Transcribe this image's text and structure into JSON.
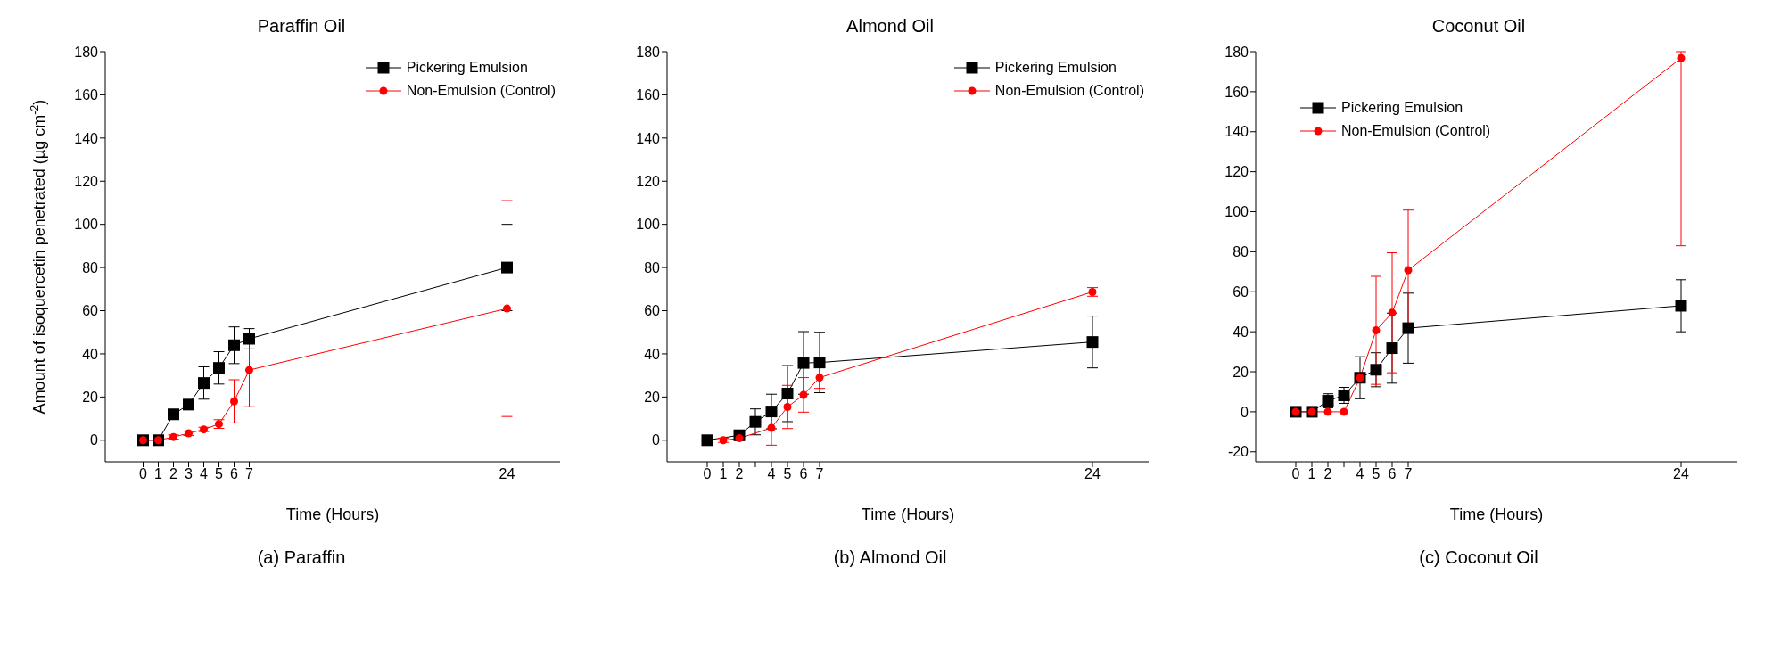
{
  "chart_data": [
    {
      "type": "line",
      "title": "Paraffin Oil",
      "xlabel": "Time (Hours)",
      "ylabel": "Amount of isoquercetin penetrated (µg cm$^{-2}$)",
      "xlim": [
        -2.5,
        27.5
      ],
      "xticks": [
        0,
        1,
        2,
        3,
        4,
        5,
        6,
        7,
        24
      ],
      "ylim": [
        -10,
        180
      ],
      "yticks": [
        0,
        20,
        40,
        60,
        80,
        100,
        120,
        140,
        160,
        180
      ],
      "legend": "top right",
      "annotations": [
        "(a)  Paraffin"
      ],
      "series": [
        {
          "name": "Pickering Emulsion",
          "color": "#000000",
          "marker": "square",
          "x": [
            0,
            1,
            2,
            3,
            4,
            5,
            6,
            7,
            24
          ],
          "values": [
            0,
            0,
            12,
            16.5,
            26.5,
            33.5,
            44,
            47,
            80
          ],
          "errors": [
            null,
            null,
            2,
            1,
            7.5,
            7.5,
            8.5,
            4.7,
            20
          ]
        },
        {
          "name": "Non-Emulsion (Control)",
          "color": "#ff0000",
          "marker": "circle",
          "x": [
            0,
            1,
            2,
            3,
            4,
            5,
            6,
            7,
            24
          ],
          "values": [
            0,
            0,
            1.5,
            3.2,
            5,
            7.5,
            18,
            32.5,
            61
          ],
          "errors": [
            null,
            null,
            1,
            1,
            1,
            2,
            10,
            17,
            50
          ]
        }
      ]
    },
    {
      "type": "line",
      "title": "Almond Oil",
      "xlabel": "Time (Hours)",
      "xlim": [
        -2.5,
        27.5
      ],
      "xticks": [
        0,
        1,
        2,
        {
          "value": 3,
          "label": null
        },
        4,
        5,
        6,
        7,
        24
      ],
      "ylim": [
        -10,
        180
      ],
      "yticks": [
        0,
        20,
        40,
        60,
        80,
        100,
        120,
        140,
        160,
        180
      ],
      "legend": "top right",
      "annotations": [
        "(b) Almond Oil"
      ],
      "series": [
        {
          "name": "Pickering Emulsion",
          "color": "#000000",
          "marker": "square",
          "x": [
            0,
            2,
            3,
            4,
            5,
            6,
            7,
            24
          ],
          "values": [
            0,
            2.3,
            8.5,
            13.3,
            21.6,
            35.8,
            36,
            45.5
          ],
          "errors": [
            null,
            1,
            6,
            8,
            13,
            14.5,
            14,
            12
          ]
        },
        {
          "name": "Non-Emulsion (Control)",
          "color": "#ff0000",
          "marker": "circle",
          "x": [
            1,
            2,
            4,
            5,
            6,
            7,
            24
          ],
          "values": [
            0,
            0.9,
            5.7,
            15.4,
            21,
            29,
            68.7
          ],
          "errors": [
            1,
            1,
            8,
            10,
            8,
            5,
            2
          ]
        }
      ]
    },
    {
      "type": "line",
      "title": "Coconut Oil",
      "xlabel": "Time (Hours)",
      "xlim": [
        -2.5,
        27.5
      ],
      "xticks": [
        0,
        1,
        2,
        {
          "value": 3,
          "label": null
        },
        4,
        5,
        6,
        7,
        24
      ],
      "ylim": [
        -25,
        180
      ],
      "yticks": [
        -20,
        0,
        20,
        40,
        60,
        80,
        100,
        120,
        140,
        160,
        180
      ],
      "legend": "top left",
      "annotations": [
        "(c) Coconut Oil"
      ],
      "series": [
        {
          "name": "Pickering Emulsion",
          "color": "#000000",
          "marker": "square",
          "x": [
            0,
            1,
            2,
            3,
            4,
            5,
            6,
            7,
            24
          ],
          "values": [
            0,
            0,
            5.5,
            8.2,
            17,
            21,
            31.8,
            41.8,
            53
          ],
          "errors": [
            null,
            null,
            3.5,
            4,
            10.5,
            8.5,
            17.5,
            17.5,
            13
          ]
        },
        {
          "name": "Non-Emulsion (Control)",
          "color": "#ff0000",
          "marker": "circle",
          "x": [
            0,
            1,
            2,
            3,
            4,
            5,
            6,
            7,
            24
          ],
          "values": [
            0,
            0,
            0,
            0,
            17,
            40.7,
            49.5,
            70.8,
            176.8
          ],
          "errors": [
            null,
            null,
            null,
            null,
            null,
            27,
            30,
            30,
            [
              83,
              180
            ]
          ]
        }
      ]
    }
  ]
}
